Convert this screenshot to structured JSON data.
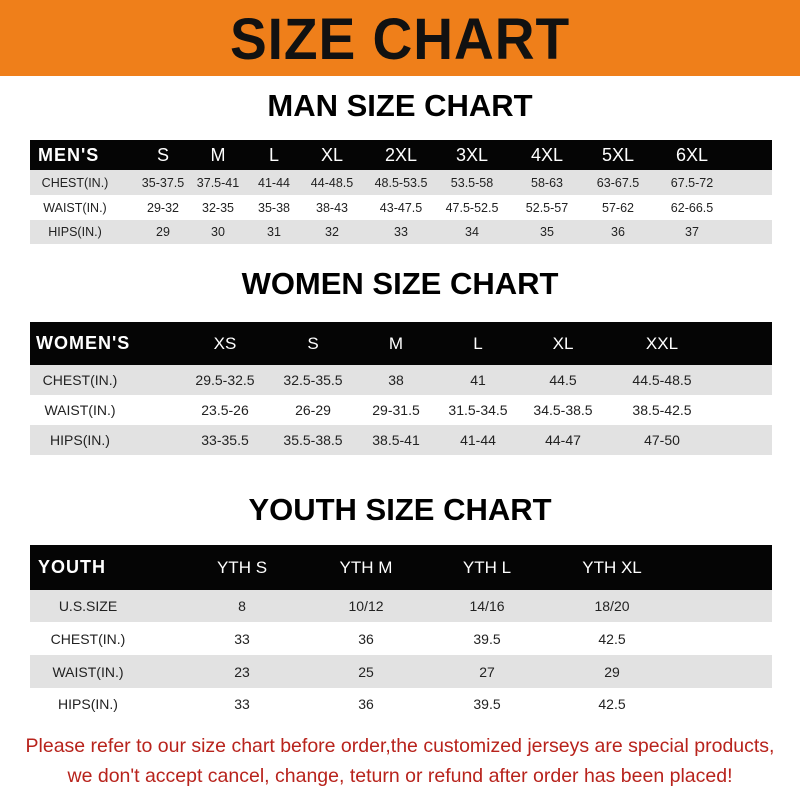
{
  "banner": {
    "title": "SIZE CHART",
    "color": "#ef7f1a"
  },
  "men": {
    "title": "MAN SIZE CHART",
    "header": [
      "MEN'S",
      "S",
      "M",
      "L",
      "XL",
      "2XL",
      "3XL",
      "4XL",
      "5XL",
      "6XL"
    ],
    "rows": [
      [
        "CHEST(IN.)",
        "35-37.5",
        "37.5-41",
        "41-44",
        "44-48.5",
        "48.5-53.5",
        "53.5-58",
        "58-63",
        "63-67.5",
        "67.5-72"
      ],
      [
        "WAIST(IN.)",
        "29-32",
        "32-35",
        "35-38",
        "38-43",
        "43-47.5",
        "47.5-52.5",
        "52.5-57",
        "57-62",
        "62-66.5"
      ],
      [
        "HIPS(IN.)",
        "29",
        "30",
        "31",
        "32",
        "33",
        "34",
        "35",
        "36",
        "37"
      ]
    ]
  },
  "women": {
    "title": "WOMEN SIZE CHART",
    "header": [
      "WOMEN'S",
      "XS",
      "S",
      "M",
      "L",
      "XL",
      "XXL"
    ],
    "rows": [
      [
        "CHEST(IN.)",
        "29.5-32.5",
        "32.5-35.5",
        "38",
        "41",
        "44.5",
        "44.5-48.5"
      ],
      [
        "WAIST(IN.)",
        "23.5-26",
        "26-29",
        "29-31.5",
        "31.5-34.5",
        "34.5-38.5",
        "38.5-42.5"
      ],
      [
        "HIPS(IN.)",
        "33-35.5",
        "35.5-38.5",
        "38.5-41",
        "41-44",
        "44-47",
        "47-50"
      ]
    ]
  },
  "youth": {
    "title": "YOUTH SIZE CHART",
    "header": [
      "YOUTH",
      "YTH S",
      "YTH M",
      "YTH L",
      "YTH XL"
    ],
    "rows": [
      [
        "U.S.SIZE",
        "8",
        "10/12",
        "14/16",
        "18/20"
      ],
      [
        "CHEST(IN.)",
        "33",
        "36",
        "39.5",
        "42.5"
      ],
      [
        "WAIST(IN.)",
        "23",
        "25",
        "27",
        "29"
      ],
      [
        "HIPS(IN.)",
        "33",
        "36",
        "39.5",
        "42.5"
      ]
    ]
  },
  "footer": {
    "line1": "Please refer to our size chart before order,the customized jerseys are special products,",
    "line2": "we don't accept cancel, change, teturn or refund after order has been placed!",
    "color": "#b8231c"
  }
}
